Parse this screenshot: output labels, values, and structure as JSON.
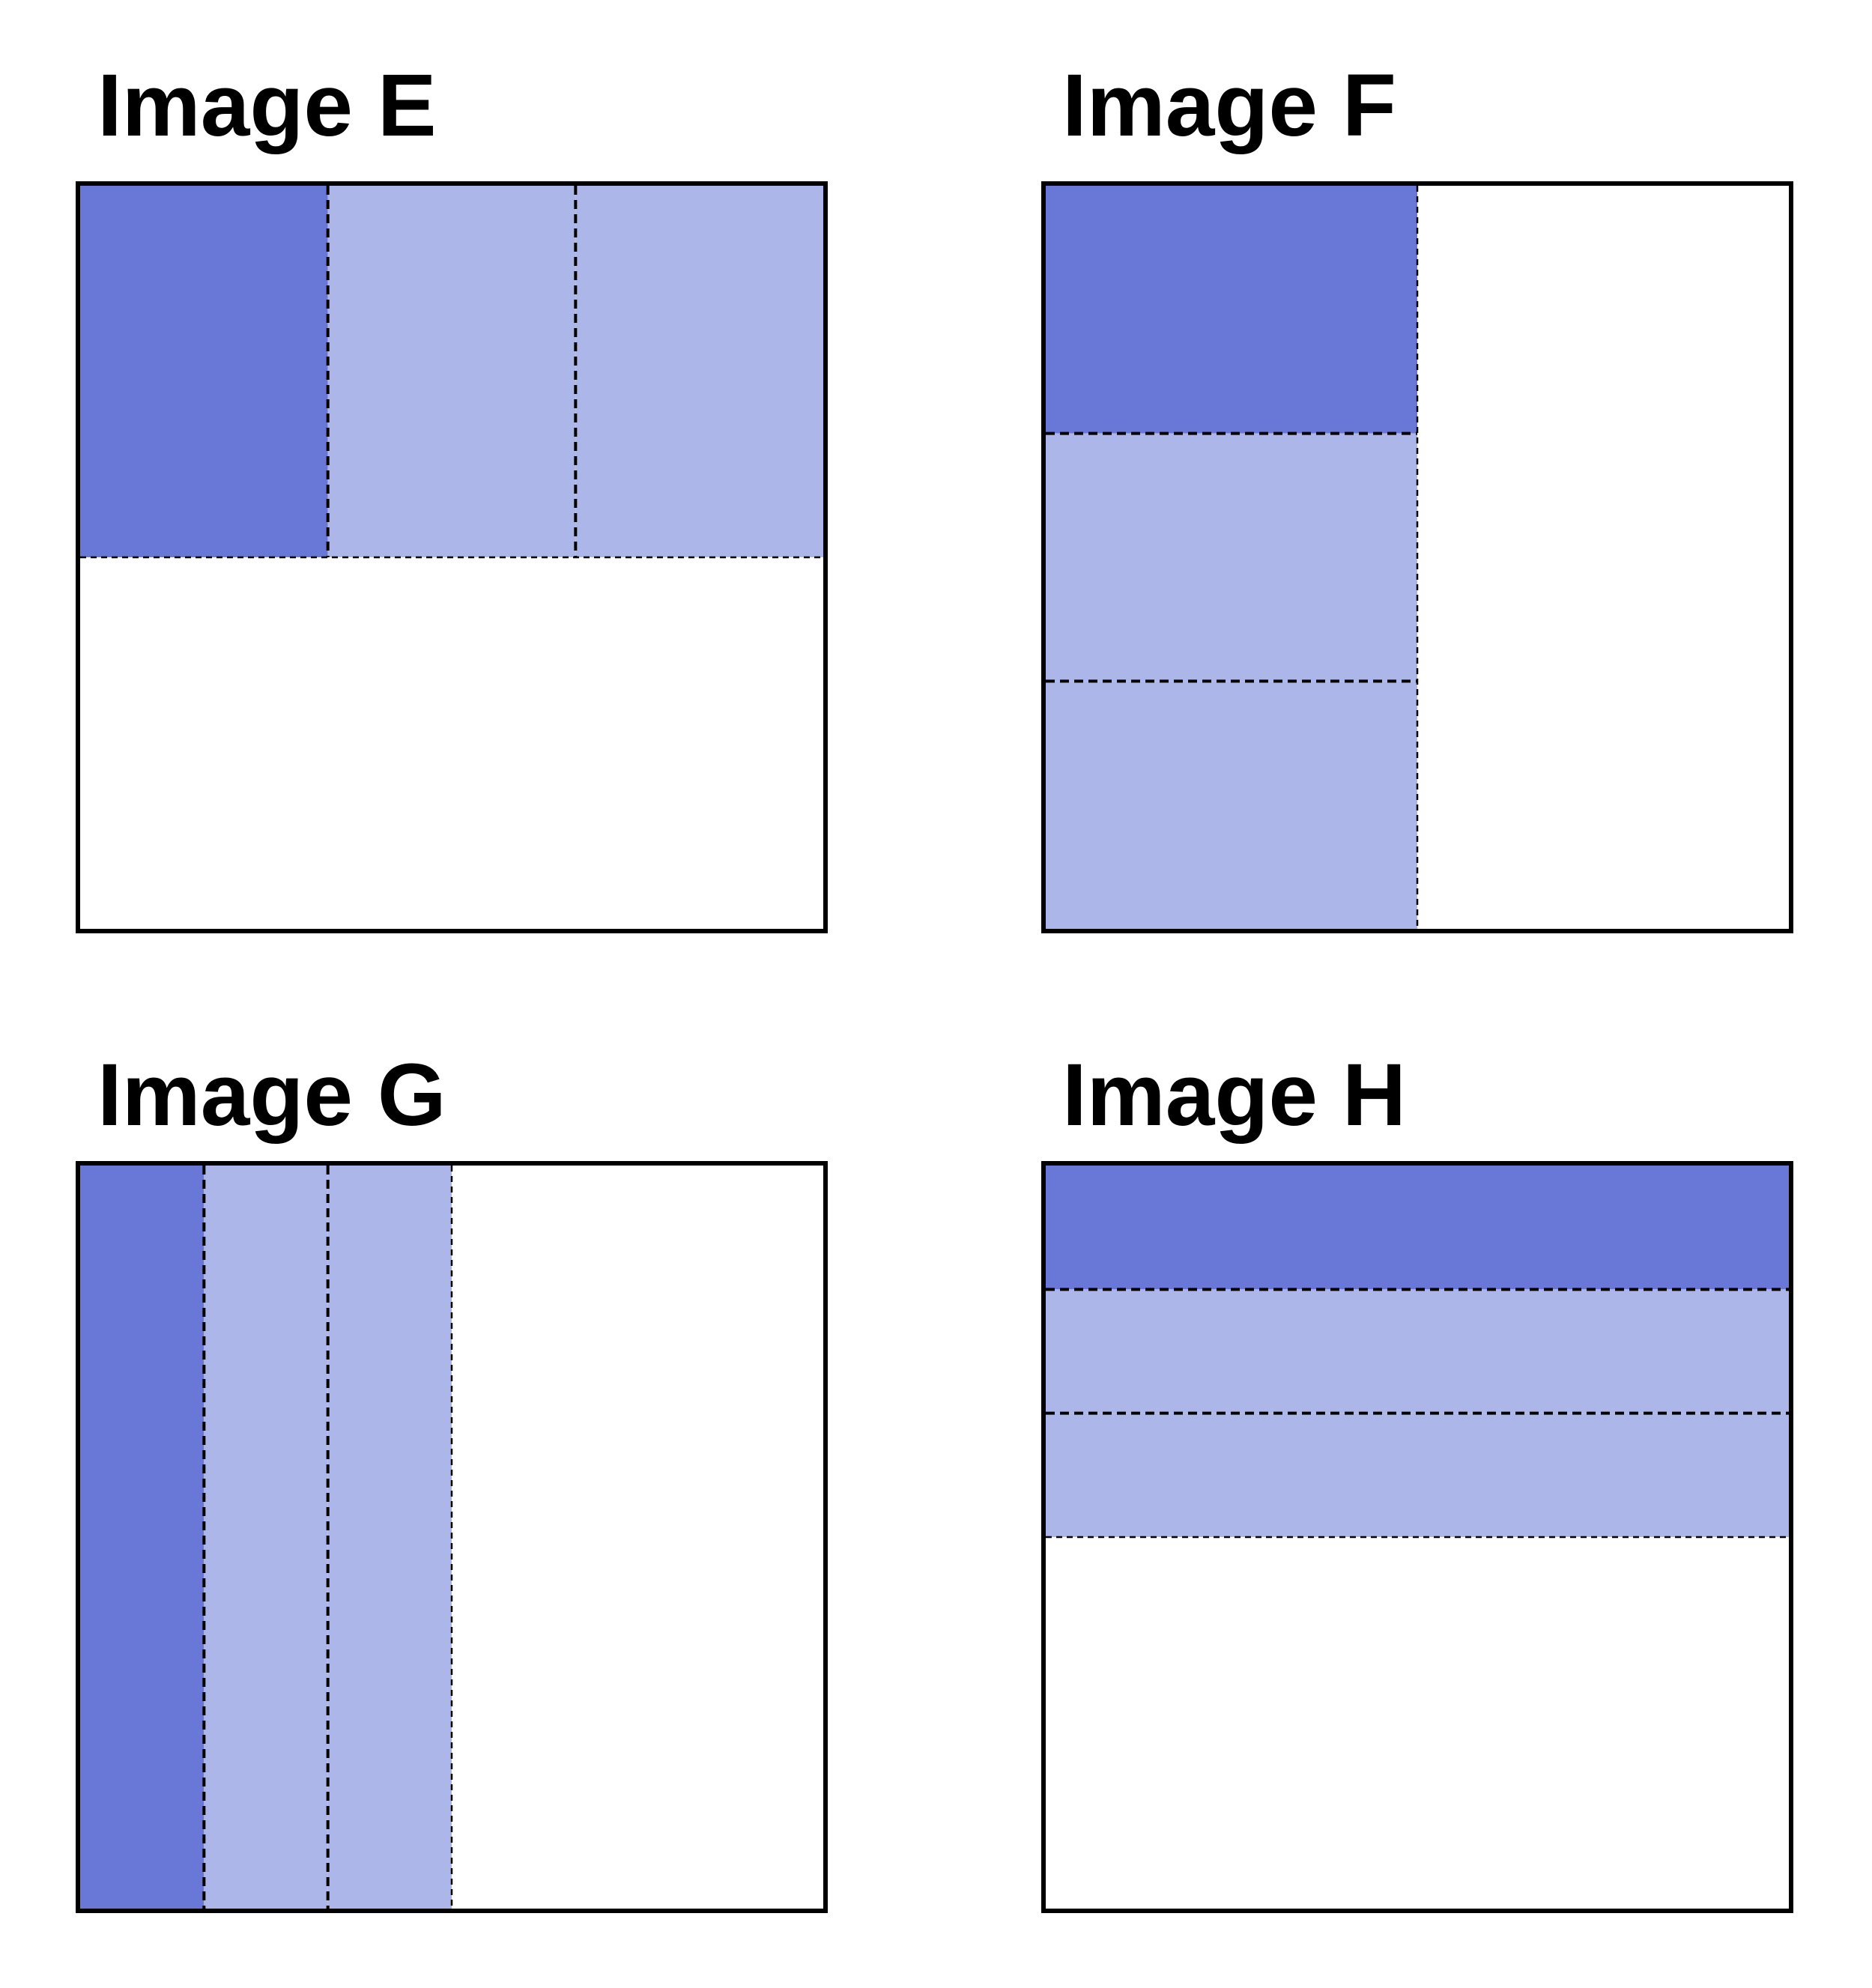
{
  "colors": {
    "primary_block": "#6977d6",
    "secondary_block": "#adb6e8",
    "empty_area": "#ffffff",
    "border": "#000000",
    "divider": "#000000"
  },
  "panels": [
    {
      "id": "e",
      "title": "Image E",
      "orientation": "columns",
      "covered_fraction_of_height": 0.5,
      "segments": [
        {
          "shade": "primary"
        },
        {
          "shade": "secondary"
        },
        {
          "shade": "secondary"
        }
      ]
    },
    {
      "id": "f",
      "title": "Image F",
      "orientation": "rows",
      "covered_fraction_of_width": 0.5,
      "segments": [
        {
          "shade": "primary"
        },
        {
          "shade": "secondary"
        },
        {
          "shade": "secondary"
        }
      ]
    },
    {
      "id": "g",
      "title": "Image G",
      "orientation": "columns",
      "covered_fraction_of_width": 0.5,
      "segments": [
        {
          "shade": "primary"
        },
        {
          "shade": "secondary"
        },
        {
          "shade": "secondary"
        }
      ]
    },
    {
      "id": "h",
      "title": "Image H",
      "orientation": "rows",
      "covered_fraction_of_height": 0.5,
      "segments": [
        {
          "shade": "primary"
        },
        {
          "shade": "secondary"
        },
        {
          "shade": "secondary"
        }
      ]
    }
  ]
}
